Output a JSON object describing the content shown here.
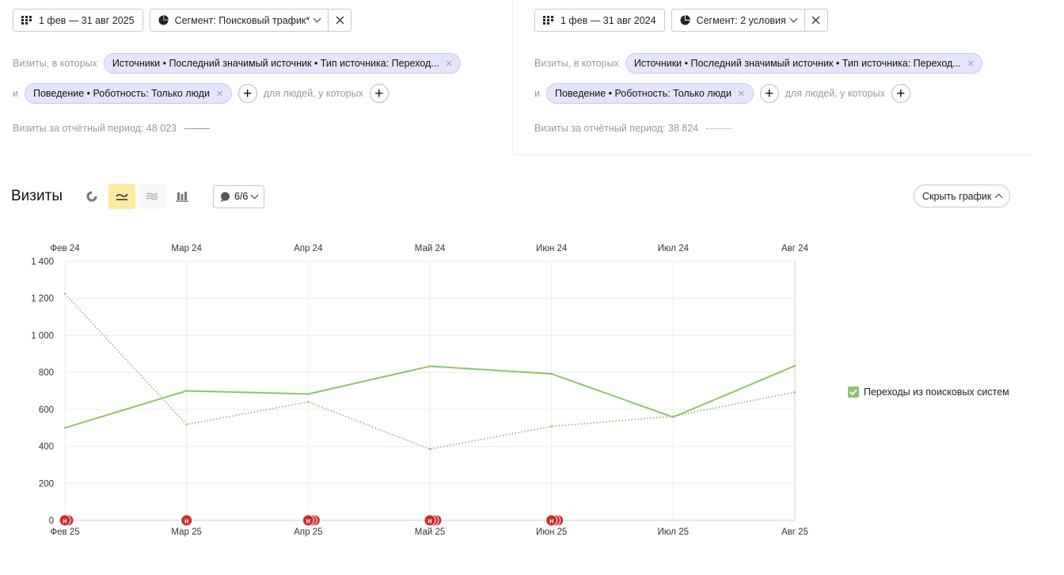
{
  "left": {
    "date_range": "1 фев — 31 авг 2025",
    "segment": "Сегмент: Поисковый трафик*",
    "visits_prefix": "Визиты, в которых",
    "chip1": "Источники • Последний значимый источник • Тип источника: Переход...",
    "and": "и",
    "chip2": "Поведение • Роботность: Только люди",
    "people_text": "для людей, у которых",
    "total": "Визиты за отчётный период: 48 023"
  },
  "right": {
    "date_range": "1 фев — 31 авг 2024",
    "segment": "Сегмент: 2 условия",
    "visits_prefix": "Визиты, в которых",
    "chip1": "Источники • Последний значимый источник • Тип источника: Переход...",
    "and": "и",
    "chip2": "Поведение • Роботность: Только люди",
    "people_text": "для людей, у которых",
    "total": "Визиты за отчётный период: 38 824"
  },
  "header": {
    "title": "Визиты",
    "annotations": "6/6",
    "hide_chart": "Скрыть график"
  },
  "legend": {
    "label": "Переходы из поисковых систем"
  },
  "colors": {
    "series": "#8fc36a",
    "chip_bg": "#e4e5fb",
    "active_view": "#fde9a2",
    "marker": "#cc2b2b"
  },
  "chart_data": {
    "type": "line",
    "x_top": [
      "Фев 24",
      "Мар 24",
      "Апр 24",
      "Май 24",
      "Июн 24",
      "Июл 24",
      "Авг 24"
    ],
    "x_bottom": [
      "Фев 25",
      "Мар 25",
      "Апр 25",
      "Май 25",
      "Июн 25",
      "Июл 25",
      "Авг 25"
    ],
    "y_ticks": [
      "0",
      "200",
      "400",
      "600",
      "800",
      "1 000",
      "1 200",
      "1 400"
    ],
    "ylim": [
      0,
      1400
    ],
    "grid": true,
    "legend_position": "right",
    "series": [
      {
        "name": "Переходы из поисковых систем",
        "period": "2025",
        "style": "solid",
        "values": [
          500,
          700,
          683,
          833,
          792,
          558,
          835
        ]
      },
      {
        "name": "Переходы из поисковых систем",
        "period": "2024",
        "style": "dotted",
        "values": [
          1225,
          518,
          640,
          385,
          508,
          563,
          693
        ]
      }
    ],
    "annotation_markers": [
      {
        "x_index": 0,
        "count": 2,
        "letter": "н"
      },
      {
        "x_index": 1,
        "count": 1,
        "letter": "н"
      },
      {
        "x_index": 2,
        "count": 3,
        "letter": "н"
      },
      {
        "x_index": 3,
        "count": 3,
        "letter": "н"
      },
      {
        "x_index": 4,
        "count": 3,
        "letter": "н"
      }
    ]
  }
}
